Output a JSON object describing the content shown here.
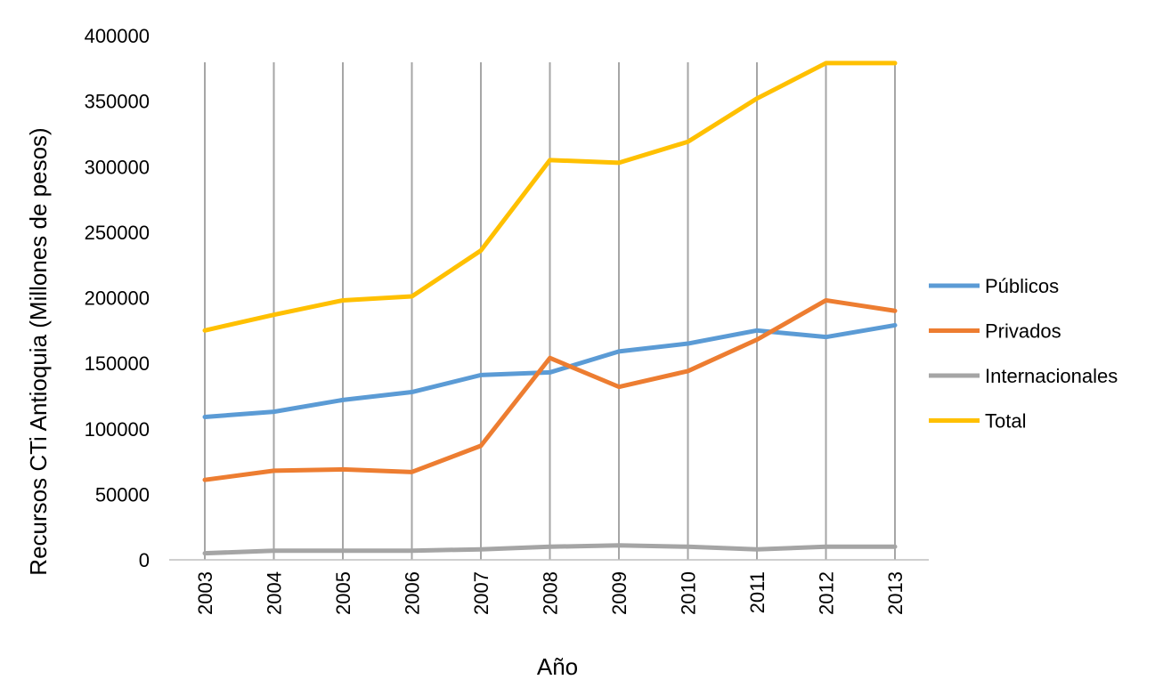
{
  "chart_data": {
    "type": "line",
    "title": "",
    "xlabel": "Año",
    "ylabel": "Recursos CTi Antioquia (Millones de pesos)",
    "ylim": [
      0,
      400000
    ],
    "yticks": [
      "0",
      "50000",
      "100000",
      "150000",
      "200000",
      "250000",
      "300000",
      "350000",
      "400000"
    ],
    "categories": [
      "2003",
      "2004",
      "2005",
      "2006",
      "2007",
      "2008",
      "2009",
      "2010",
      "2011",
      "2012",
      "2013"
    ],
    "grid": "vertical",
    "legend_position": "right",
    "series": [
      {
        "name": "Públicos",
        "color": "#5B9BD5",
        "values": [
          109000,
          113000,
          122000,
          128000,
          141000,
          143000,
          159000,
          165000,
          175000,
          170000,
          179000
        ]
      },
      {
        "name": "Privados",
        "color": "#ED7D31",
        "values": [
          61000,
          68000,
          69000,
          67000,
          87000,
          154000,
          132000,
          144000,
          168000,
          198000,
          190000
        ]
      },
      {
        "name": "Internacionales",
        "color": "#A5A5A5",
        "values": [
          5000,
          7000,
          7000,
          7000,
          8000,
          10000,
          11000,
          10000,
          8000,
          10000,
          10000
        ]
      },
      {
        "name": "Total",
        "color": "#FFC000",
        "values": [
          175000,
          187000,
          198000,
          201000,
          236000,
          305000,
          303000,
          319000,
          352000,
          379000,
          379000
        ]
      }
    ]
  }
}
